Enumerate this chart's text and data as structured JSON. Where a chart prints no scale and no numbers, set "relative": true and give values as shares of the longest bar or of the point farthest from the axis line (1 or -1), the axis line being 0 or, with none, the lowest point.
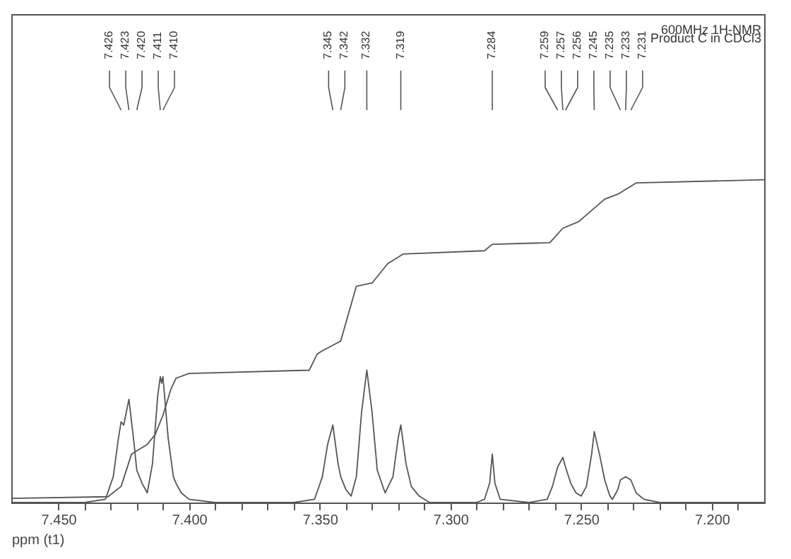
{
  "chart_data": {
    "type": "line",
    "relative": true,
    "xlabel": "ppm (t1)",
    "xlim": [
      7.468,
      7.18
    ],
    "xticks": [
      {
        "value": 7.45,
        "label": "7.450"
      },
      {
        "value": 7.44,
        "label": null
      },
      {
        "value": 7.43,
        "label": null
      },
      {
        "value": 7.42,
        "label": null
      },
      {
        "value": 7.41,
        "label": null
      },
      {
        "value": 7.4,
        "label": "7.400"
      },
      {
        "value": 7.39,
        "label": null
      },
      {
        "value": 7.38,
        "label": null
      },
      {
        "value": 7.37,
        "label": null
      },
      {
        "value": 7.36,
        "label": null
      },
      {
        "value": 7.35,
        "label": "7.350"
      },
      {
        "value": 7.34,
        "label": null
      },
      {
        "value": 7.33,
        "label": null
      },
      {
        "value": 7.32,
        "label": null
      },
      {
        "value": 7.31,
        "label": null
      },
      {
        "value": 7.3,
        "label": "7.300"
      },
      {
        "value": 7.29,
        "label": null
      },
      {
        "value": 7.28,
        "label": null
      },
      {
        "value": 7.27,
        "label": null
      },
      {
        "value": 7.26,
        "label": null
      },
      {
        "value": 7.25,
        "label": "7.250"
      },
      {
        "value": 7.24,
        "label": null
      },
      {
        "value": 7.23,
        "label": null
      },
      {
        "value": 7.22,
        "label": null
      },
      {
        "value": 7.21,
        "label": null
      },
      {
        "value": 7.2,
        "label": "7.200"
      },
      {
        "value": 7.19,
        "label": null
      }
    ],
    "grid": false,
    "line_style": "solid",
    "marker": "none",
    "series": [
      {
        "color": "#555555",
        "x": [
          7.468,
          7.44,
          7.432,
          7.429,
          7.427,
          7.426,
          7.425,
          7.423,
          7.421,
          7.42,
          7.418,
          7.416,
          7.414,
          7.412,
          7.411,
          7.4105,
          7.41,
          7.408,
          7.406,
          7.405,
          7.403,
          7.4,
          7.39,
          7.36,
          7.352,
          7.349,
          7.347,
          7.345,
          7.343,
          7.342,
          7.34,
          7.338,
          7.336,
          7.334,
          7.332,
          7.33,
          7.328,
          7.325,
          7.322,
          7.32,
          7.319,
          7.317,
          7.315,
          7.312,
          7.308,
          7.29,
          7.287,
          7.285,
          7.284,
          7.283,
          7.281,
          7.27,
          7.263,
          7.261,
          7.259,
          7.257,
          7.256,
          7.254,
          7.252,
          7.25,
          7.248,
          7.246,
          7.245,
          7.243,
          7.241,
          7.239,
          7.238,
          7.236,
          7.235,
          7.233,
          7.231,
          7.229,
          7.226,
          7.22,
          7.18
        ],
        "values": [
          0,
          0,
          0.01,
          0.08,
          0.2,
          0.25,
          0.24,
          0.32,
          0.18,
          0.1,
          0.06,
          0.03,
          0.12,
          0.33,
          0.39,
          0.37,
          0.39,
          0.2,
          0.08,
          0.06,
          0.03,
          0.01,
          0,
          0,
          0.01,
          0.08,
          0.18,
          0.24,
          0.12,
          0.08,
          0.04,
          0.02,
          0.08,
          0.28,
          0.41,
          0.28,
          0.1,
          0.03,
          0.08,
          0.2,
          0.24,
          0.12,
          0.05,
          0.02,
          0,
          0,
          0.01,
          0.06,
          0.15,
          0.06,
          0.01,
          0,
          0.01,
          0.05,
          0.11,
          0.14,
          0.11,
          0.06,
          0.03,
          0.02,
          0.05,
          0.15,
          0.22,
          0.15,
          0.07,
          0.02,
          0.01,
          0.04,
          0.07,
          0.08,
          0.07,
          0.03,
          0.01,
          0,
          0
        ]
      },
      {
        "type": "line",
        "color": "#555555",
        "x": [
          7.468,
          7.431,
          7.426,
          7.422,
          7.42,
          7.416,
          7.413,
          7.41,
          7.407,
          7.405,
          7.4,
          7.354,
          7.351,
          7.349,
          7.342,
          7.336,
          7.33,
          7.324,
          7.318,
          7.287,
          7.284,
          7.262,
          7.257,
          7.251,
          7.241,
          7.236,
          7.229,
          7.18
        ],
        "values": [
          0.013,
          0.018,
          0.05,
          0.15,
          0.16,
          0.18,
          0.21,
          0.27,
          0.35,
          0.385,
          0.4,
          0.41,
          0.46,
          0.47,
          0.5,
          0.67,
          0.68,
          0.74,
          0.77,
          0.78,
          0.8,
          0.805,
          0.85,
          0.87,
          0.94,
          0.955,
          0.99,
          1.0
        ]
      }
    ],
    "annotations": [
      "600MHz 1H-NMR",
      "Product C in CDCl3",
      {
        "text": "7.426",
        "x": 7.426
      },
      {
        "text": "7.423",
        "x": 7.423
      },
      {
        "text": "7.420",
        "x": 7.42
      },
      {
        "text": "7.411",
        "x": 7.411
      },
      {
        "text": "7.410",
        "x": 7.41
      },
      {
        "text": "7.345",
        "x": 7.345
      },
      {
        "text": "7.342",
        "x": 7.342
      },
      {
        "text": "7.332",
        "x": 7.332
      },
      {
        "text": "7.319",
        "x": 7.319
      },
      {
        "text": "7.284",
        "x": 7.284
      },
      {
        "text": "7.259",
        "x": 7.259
      },
      {
        "text": "7.257",
        "x": 7.257
      },
      {
        "text": "7.256",
        "x": 7.256
      },
      {
        "text": "7.245",
        "x": 7.245
      },
      {
        "text": "7.235",
        "x": 7.235
      },
      {
        "text": "7.233",
        "x": 7.233
      },
      {
        "text": "7.231",
        "x": 7.231
      }
    ]
  }
}
